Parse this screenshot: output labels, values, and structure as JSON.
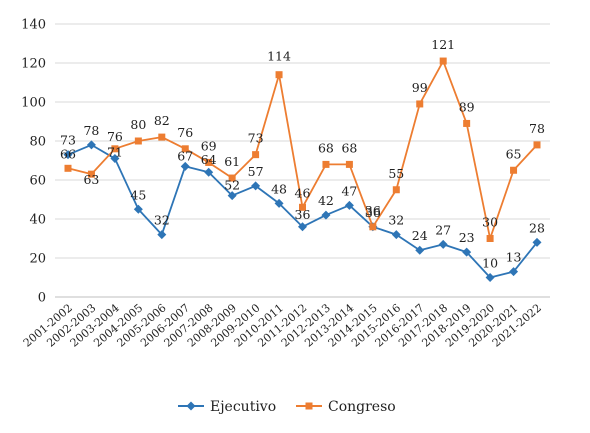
{
  "chart_data": {
    "type": "line",
    "title": "",
    "xlabel": "",
    "ylabel": "",
    "ylim": [
      0,
      140
    ],
    "yticks": [
      0,
      20,
      40,
      60,
      80,
      100,
      120,
      140
    ],
    "grid": true,
    "legend_position": "bottom",
    "categories": [
      "2001-2002",
      "2002-2003",
      "2003-2004",
      "2004-2005",
      "2005-2006",
      "2006-2007",
      "2007-2008",
      "2008-2009",
      "2009-2010",
      "2010-2011",
      "2011-2012",
      "2012-2013",
      "2013-2014",
      "2014-2015",
      "2015-2016",
      "2016-2017",
      "2017-2018",
      "2018-2019",
      "2019-2020",
      "2020-2021",
      "2021-2022"
    ],
    "series": [
      {
        "name": "Ejecutivo",
        "color": "#2E75B6",
        "marker": "diamond",
        "values": [
          73,
          78,
          71,
          45,
          32,
          67,
          64,
          52,
          57,
          48,
          36,
          42,
          47,
          36,
          32,
          24,
          27,
          23,
          10,
          13,
          28
        ]
      },
      {
        "name": "Congreso",
        "color": "#ED7D31",
        "marker": "square",
        "values": [
          66,
          63,
          76,
          80,
          82,
          76,
          69,
          61,
          73,
          114,
          46,
          68,
          68,
          36,
          55,
          99,
          121,
          89,
          30,
          65,
          78
        ]
      }
    ]
  }
}
